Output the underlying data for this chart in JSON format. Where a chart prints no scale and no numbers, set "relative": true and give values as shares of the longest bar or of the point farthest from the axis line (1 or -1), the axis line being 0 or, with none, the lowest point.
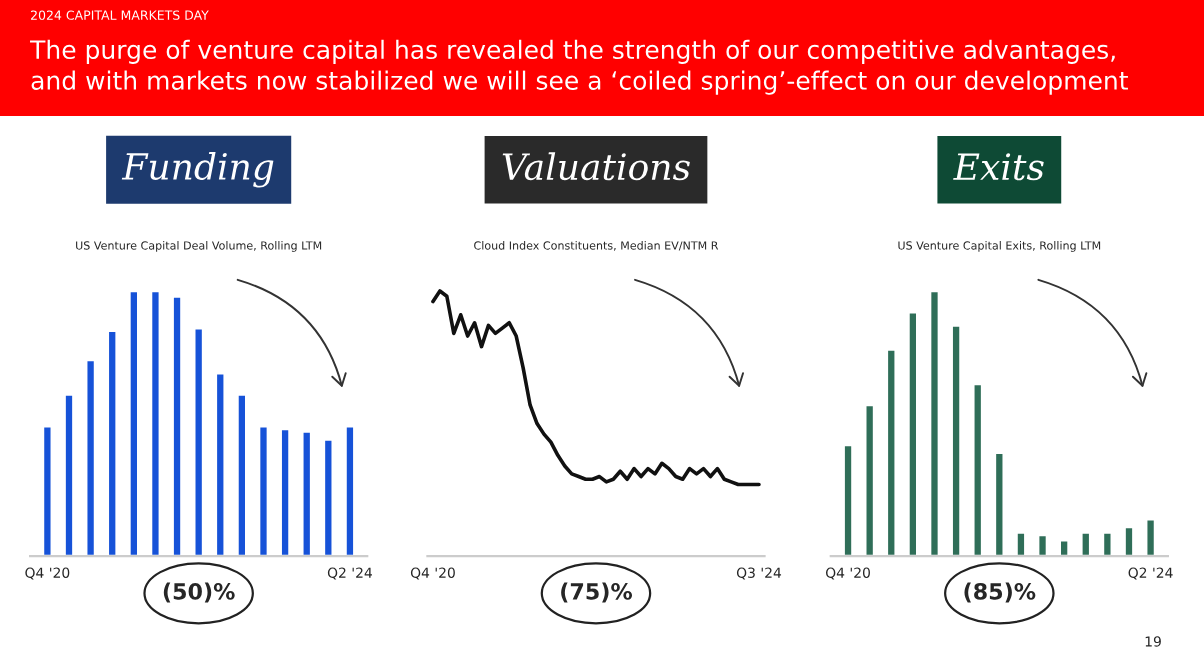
{
  "chart_data": [
    {
      "type": "other",
      "subtitle": "2024 CAPITAL MARKETS DAY",
      "title": "The purge of venture capital has revealed the strength of our competitive advantages,\nand with markets now stabilized we will see a ‘coiled spring’-effect on our development",
      "annotations": [
        "19"
      ]
    },
    {
      "type": "bar",
      "title": "Funding",
      "subtitle": "US Venture Capital Deal Volume, Rolling LTM",
      "relative": true,
      "color": "#1652d8",
      "categories": [
        "Q4 '20",
        null,
        null,
        null,
        null,
        null,
        null,
        null,
        null,
        null,
        null,
        null,
        null,
        null,
        "Q2 '24"
      ],
      "values": [
        0.49,
        0.61,
        0.74,
        0.85,
        1.0,
        1.0,
        0.98,
        0.86,
        0.69,
        0.61,
        0.49,
        0.48,
        0.47,
        0.44,
        0.49
      ],
      "annotations": [
        "(50)%"
      ]
    },
    {
      "type": "line",
      "title": "Valuations",
      "subtitle": "Cloud Index Constituents, Median EV/NTM R",
      "relative": true,
      "color": "#111111",
      "categories": [
        "Q4 '20",
        null,
        null,
        null,
        null,
        null,
        null,
        null,
        null,
        null,
        null,
        null,
        null,
        null,
        null,
        null,
        null,
        null,
        null,
        null,
        null,
        null,
        null,
        null,
        null,
        null,
        null,
        null,
        null,
        null,
        null,
        null,
        null,
        null,
        null,
        null,
        null,
        null,
        null,
        null,
        null,
        null,
        null,
        null,
        null,
        null,
        null,
        "Q3 '24"
      ],
      "values": [
        0.96,
        1.0,
        0.98,
        0.84,
        0.91,
        0.83,
        0.88,
        0.79,
        0.87,
        0.84,
        0.86,
        0.88,
        0.83,
        0.71,
        0.57,
        0.5,
        0.46,
        0.43,
        0.38,
        0.34,
        0.31,
        0.3,
        0.29,
        0.29,
        0.3,
        0.28,
        0.29,
        0.32,
        0.29,
        0.33,
        0.3,
        0.33,
        0.31,
        0.35,
        0.33,
        0.3,
        0.29,
        0.33,
        0.31,
        0.33,
        0.3,
        0.33,
        0.29,
        0.28,
        0.27,
        0.27,
        0.27,
        0.27
      ],
      "annotations": [
        "(75)%"
      ]
    },
    {
      "type": "bar",
      "title": "Exits",
      "subtitle": "US Venture Capital Exits, Rolling LTM",
      "relative": true,
      "color": "#2f6e58",
      "categories": [
        "Q4 '20",
        null,
        null,
        null,
        null,
        null,
        null,
        null,
        null,
        null,
        null,
        null,
        null,
        null,
        "Q2 '24"
      ],
      "values": [
        0.42,
        0.57,
        0.78,
        0.92,
        1.0,
        0.87,
        0.65,
        0.39,
        0.09,
        0.08,
        0.06,
        0.09,
        0.09,
        0.11,
        0.14
      ],
      "annotations": [
        "(85)%"
      ]
    }
  ]
}
